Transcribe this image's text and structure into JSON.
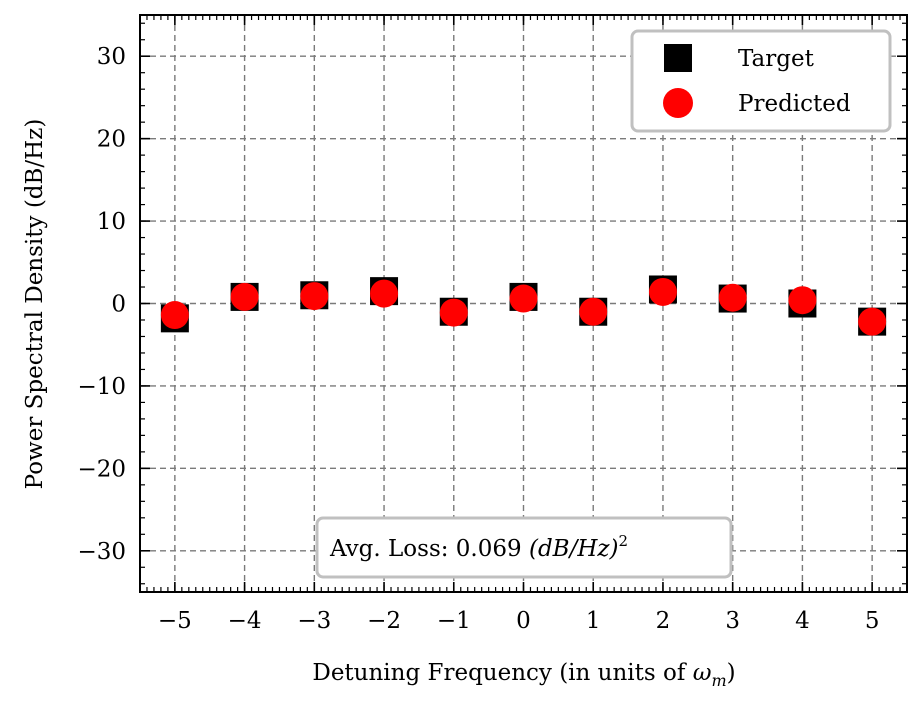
{
  "chart_data": {
    "type": "scatter",
    "xlabel_text": "Detuning Frequency (in units of ",
    "xlabel_math": "ω",
    "xlabel_sub": "m",
    "xlabel_close": ")",
    "ylabel": "Power Spectral Density (dB/Hz)",
    "xlim": [
      -5.5,
      5.5
    ],
    "ylim": [
      -35,
      35
    ],
    "x_ticks": [
      -5,
      -4,
      -3,
      -2,
      -1,
      0,
      1,
      2,
      3,
      4,
      5
    ],
    "x_tick_labels": [
      "−5",
      "−4",
      "−3",
      "−2",
      "−1",
      "0",
      "1",
      "2",
      "3",
      "4",
      "5"
    ],
    "y_ticks": [
      -30,
      -20,
      -10,
      0,
      10,
      20,
      30
    ],
    "y_tick_labels": [
      "−30",
      "−20",
      "−10",
      "0",
      "10",
      "20",
      "30"
    ],
    "grid": true,
    "legend_position": "top-right",
    "series": [
      {
        "name": "Target",
        "marker": "square",
        "color": "#000000",
        "x": [
          -5,
          -4,
          -3,
          -2,
          -1,
          0,
          1,
          2,
          3,
          4,
          5
        ],
        "y": [
          -1.8,
          0.8,
          1.0,
          1.5,
          -1.0,
          0.8,
          -1.0,
          1.7,
          0.6,
          0.0,
          -2.2
        ]
      },
      {
        "name": "Predicted",
        "marker": "circle",
        "color": "#ff0000",
        "x": [
          -5,
          -4,
          -3,
          -2,
          -1,
          0,
          1,
          2,
          3,
          4,
          5
        ],
        "y": [
          -1.4,
          0.8,
          0.9,
          1.2,
          -1.1,
          0.6,
          -1.0,
          1.4,
          0.7,
          0.4,
          -2.2
        ]
      }
    ],
    "annotation": {
      "text": "Avg. Loss: 0.069 ",
      "math": "(dB/Hz)",
      "sup": "2"
    }
  }
}
